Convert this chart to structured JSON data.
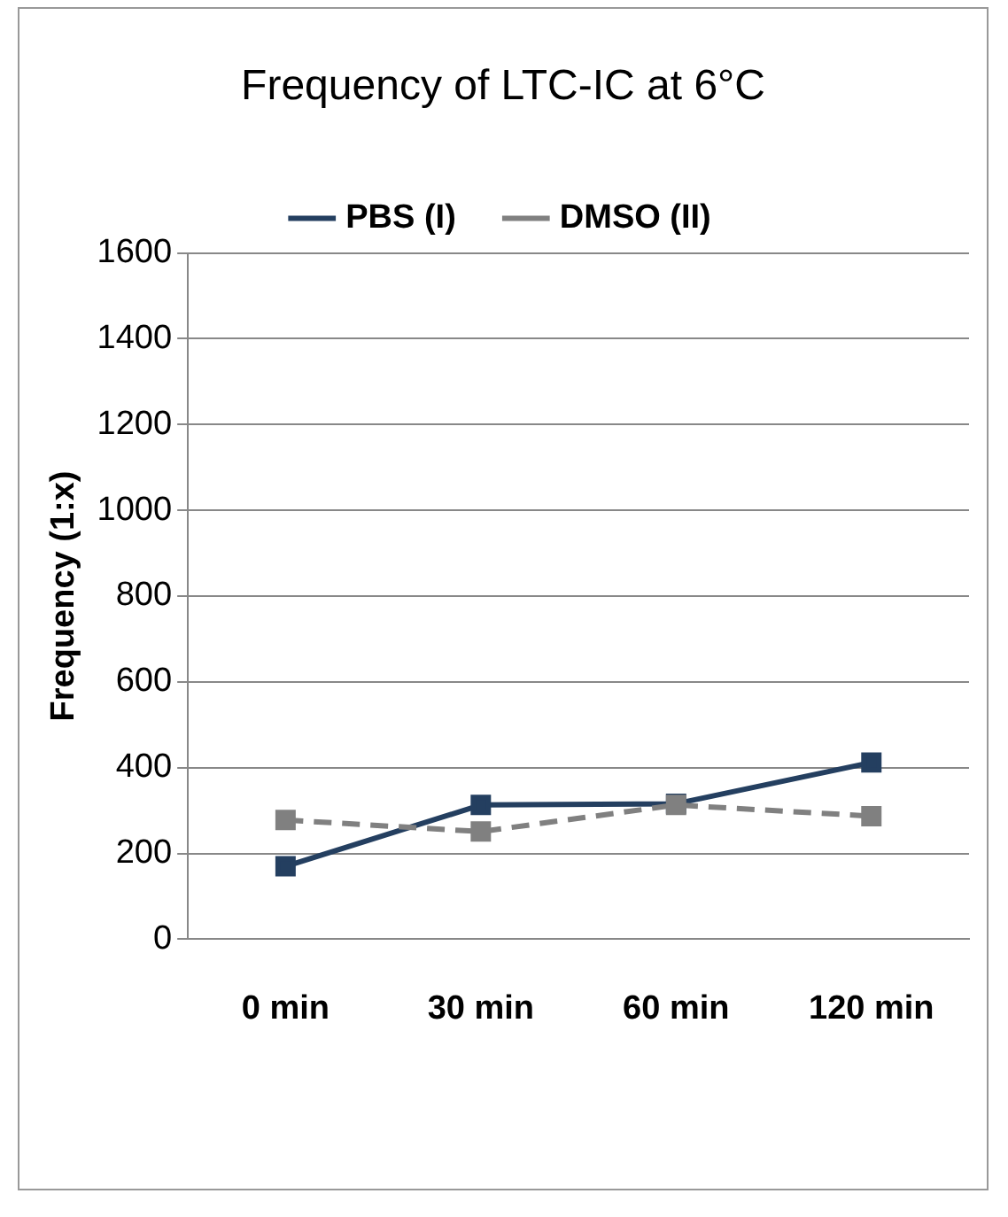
{
  "chart_data": {
    "type": "line",
    "title": "Frequency of LTC-IC at 6°C",
    "ylabel": "Frequency (1:x)",
    "categories": [
      "0 min",
      "30 min",
      "60 min",
      "120 min"
    ],
    "series": [
      {
        "name": "PBS (I)",
        "color": "#243f60",
        "values": [
          170,
          313,
          316,
          412
        ],
        "line_style": "solid"
      },
      {
        "name": "DMSO (II)",
        "color": "#808080",
        "values": [
          278,
          251,
          313,
          287
        ],
        "line_style": "dashed"
      }
    ],
    "ylim": [
      0,
      1600
    ],
    "yticks": [
      0,
      200,
      400,
      600,
      800,
      1000,
      1200,
      1400,
      1600
    ],
    "grid": "y",
    "legend": "top",
    "marker": "square"
  }
}
